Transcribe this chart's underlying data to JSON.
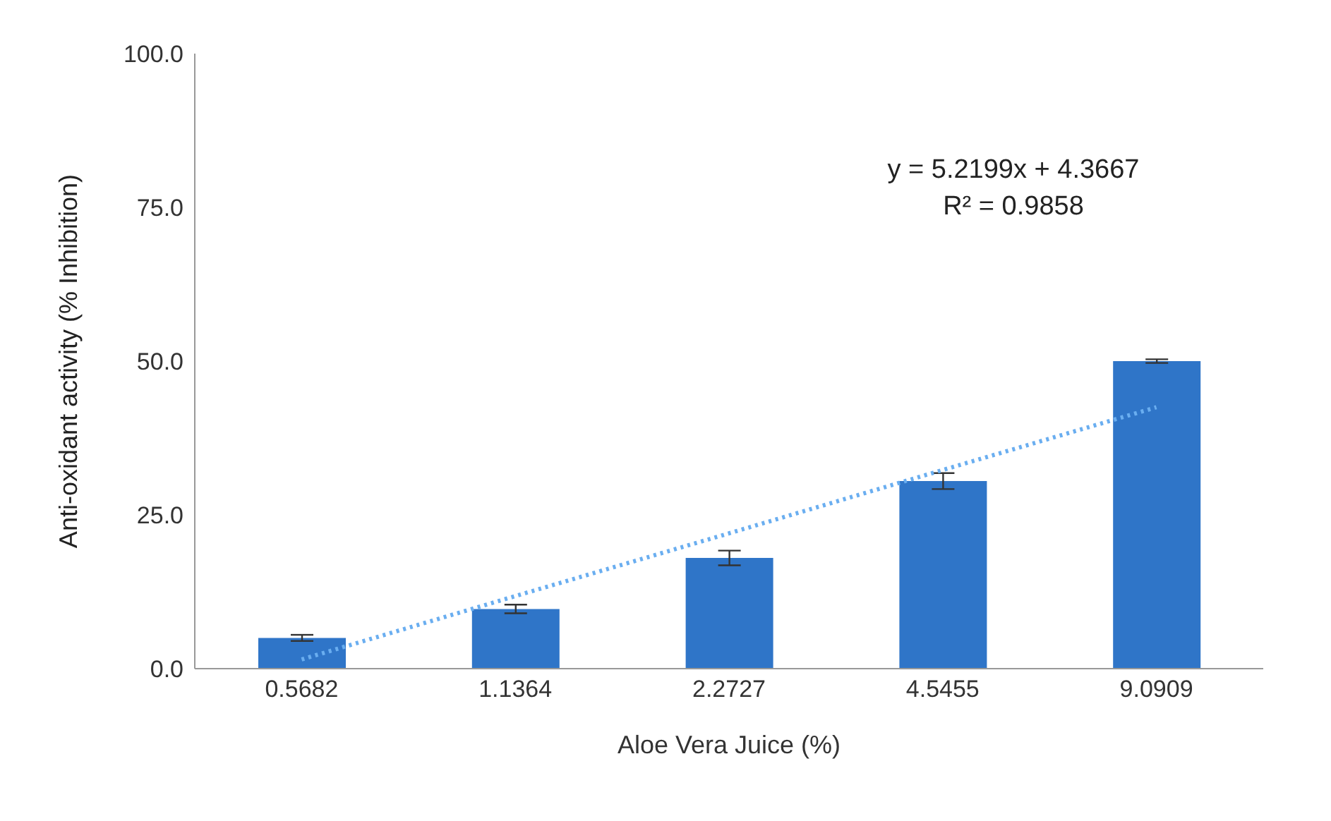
{
  "chart_data": {
    "type": "bar",
    "xlabel": "Aloe Vera Juice (%)",
    "ylabel": "Anti-oxidant activity (% Inhibition)",
    "categories": [
      "0.5682",
      "1.1364",
      "2.2727",
      "4.5455",
      "9.0909"
    ],
    "series": [
      {
        "color": "#2f75c8",
        "values": [
          5.0,
          9.7,
          18.0,
          30.5,
          50.0
        ],
        "errors": [
          0.5,
          0.7,
          1.2,
          1.3,
          0.3
        ]
      },
      {
        "type": "line",
        "x": [
          "0.5682",
          "1.1364",
          "2.2727",
          "4.5455",
          "9.0909"
        ],
        "color": "#6aaef0",
        "values": [
          1.5,
          11.8,
          22.0,
          32.3,
          42.5
        ],
        "line_style": "dotted",
        "marker": "none"
      }
    ],
    "ylim": [
      0,
      100
    ],
    "yticks": [
      {
        "value": 0,
        "label": "0.0"
      },
      {
        "value": 25,
        "label": "25.0"
      },
      {
        "value": 50,
        "label": "50.0"
      },
      {
        "value": 75,
        "label": "75.0"
      },
      {
        "value": 100,
        "label": "100.0"
      }
    ],
    "annotations": [
      "y = 5.2199x + 4.3667",
      "R² = 0.9858"
    ]
  }
}
